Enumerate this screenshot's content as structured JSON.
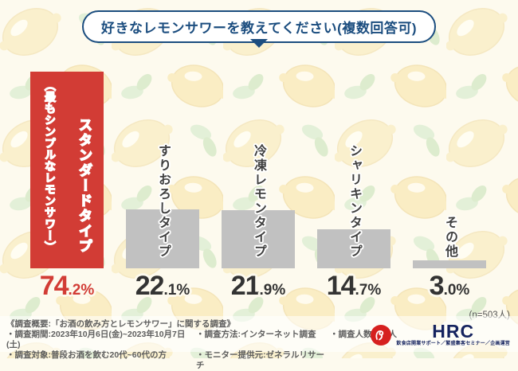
{
  "title": "好きなレモンサワーを教えてください(複数回答可)",
  "sample_note": "(n=503人)",
  "bars": [
    {
      "label": "スタンダードタイプ",
      "sublabel": "（最もシンプルなレモンサワー）",
      "pct_main": "74",
      "pct_sub": ".2%"
    },
    {
      "label": "すりおろしタイプ",
      "pct_main": "22",
      "pct_sub": ".1%"
    },
    {
      "label": "冷凍レモンタイプ",
      "pct_main": "21",
      "pct_sub": ".9%"
    },
    {
      "label": "シャリキンタイプ",
      "pct_main": "14",
      "pct_sub": ".7%"
    },
    {
      "label": "その他",
      "pct_main": "3",
      "pct_sub": ".0%"
    }
  ],
  "chart_data": {
    "type": "bar",
    "title": "好きなレモンサワーを教えてください(複数回答可)",
    "categories": [
      "スタンダードタイプ（最もシンプルなレモンサワー）",
      "すりおろしタイプ",
      "冷凍レモンタイプ",
      "シャリキンタイプ",
      "その他"
    ],
    "values": [
      74.2,
      22.1,
      21.9,
      14.7,
      3.0
    ],
    "value_labels": [
      "74.2%",
      "22.1%",
      "21.9%",
      "14.7%",
      "3.0%"
    ],
    "unit": "%",
    "sample_size": "n=503人",
    "orientation": "vertical",
    "grid": false,
    "legend": false,
    "axes_visible": false,
    "ylim": [
      0,
      80
    ],
    "highlight_color": "#d23c35",
    "bar_color": "#c1c1c1"
  },
  "footer": {
    "overview": "《調査概要:「お酒の飲み方とレモンサワー」に関する調査》",
    "period": "・調査期間:2023年10月6日(金)~2023年10月7日(土)",
    "method": "・調査方法:インターネット調査",
    "people": "・調査人数:526人",
    "target": "・調査対象:普段お酒を飲む20代~60代の方",
    "monitor": "・モニター提供元:ゼネラルリサーチ"
  },
  "logo": {
    "name": "HRC",
    "tagline": "飲食店開業サポート／繁盛集客セミナー／企画運営"
  },
  "colors": {
    "accent_red": "#d23c35",
    "navy": "#1b4d7f",
    "bar_gray": "#c1c1c1",
    "background": "#fdfaee"
  }
}
